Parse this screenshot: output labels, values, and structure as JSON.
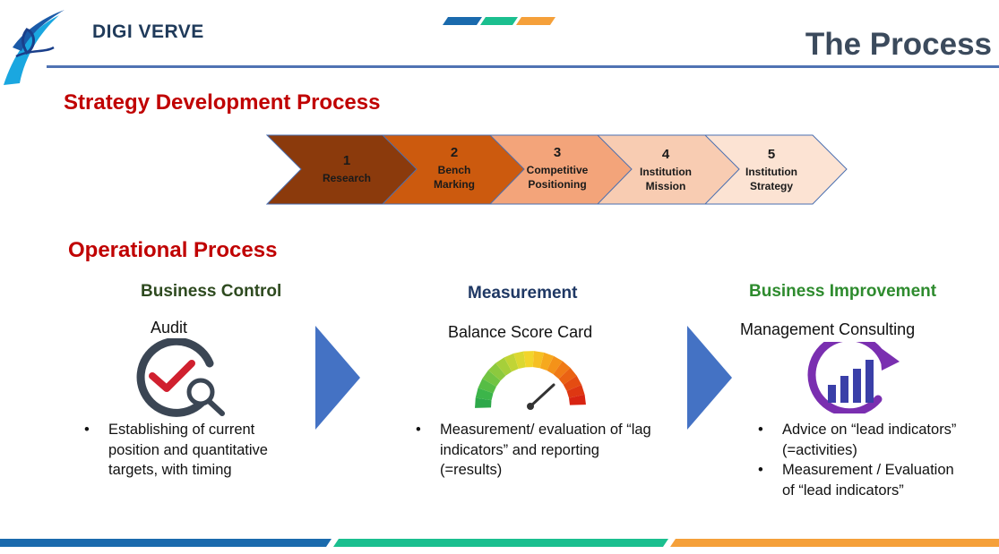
{
  "brand": {
    "name": "DIGI VERVE",
    "logo_icon": "digi-verve-swirl-logo"
  },
  "page_title": "The Process",
  "accent_colors": {
    "blue": "#1a6aad",
    "teal": "#1bbf8f",
    "orange": "#f5a03a",
    "heading_red": "#c00000"
  },
  "strategy": {
    "heading": "Strategy Development Process",
    "steps": [
      {
        "num": "1",
        "label": "Research",
        "color": "#8b3a0c"
      },
      {
        "num": "2",
        "label": "Bench Marking",
        "color": "#cc5a0e"
      },
      {
        "num": "3",
        "label": "Competitive Positioning",
        "color": "#f3a47a"
      },
      {
        "num": "4",
        "label": "Institution Mission",
        "color": "#f8ccb2"
      },
      {
        "num": "5",
        "label": "Institution Strategy",
        "color": "#fce3d3"
      }
    ]
  },
  "operational": {
    "heading": "Operational Process",
    "columns": [
      {
        "heading": "Business Control",
        "heading_color": "#2e4a1f",
        "subtitle": "Audit",
        "icon": "audit-magnifier-check-icon",
        "bullets": [
          "Establishing of current position and quantitative targets, with timing"
        ]
      },
      {
        "heading": "Measurement",
        "heading_color": "#1f3864",
        "subtitle": "Balance Score Card",
        "icon": "gauge-meter-icon",
        "bullets": [
          "Measurement/ evaluation of “lag indicators” and reporting (=results)"
        ]
      },
      {
        "heading": "Business Improvement",
        "heading_color": "#2e8b2e",
        "subtitle": "Management Consulting",
        "icon": "growth-chart-cycle-icon",
        "bullets": [
          "Advice on “lead indicators” (=activities)",
          "Measurement / Evaluation of “lead indicators”"
        ]
      }
    ],
    "arrow_icon": "flow-arrow-icon"
  }
}
